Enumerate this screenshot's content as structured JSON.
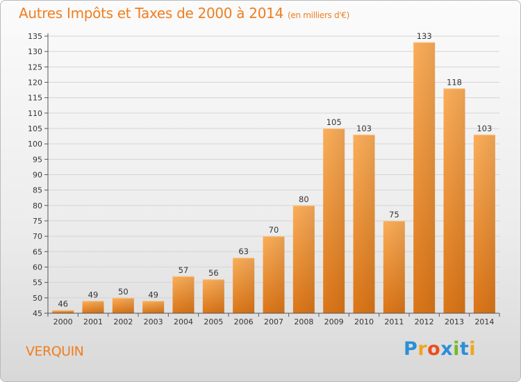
{
  "header": {
    "title": "Autres Impôts et Taxes de 2000 à 2014",
    "subtitle": "(en milliers d'€)"
  },
  "commune": "VERQUIN",
  "logo": {
    "text": "Proxiti",
    "letters": [
      {
        "ch": "P",
        "color": "#2c8fd6"
      },
      {
        "ch": "r",
        "color": "#f0a51e"
      },
      {
        "ch": "o",
        "color": "#ea4e1c"
      },
      {
        "ch": "x",
        "color": "#2c8fd6"
      },
      {
        "ch": "i",
        "color": "#77b82a"
      },
      {
        "ch": "t",
        "color": "#2c8fd6"
      },
      {
        "ch": "i",
        "color": "#f0a51e"
      }
    ]
  },
  "colors": {
    "accent": "#f07d1e",
    "bar_light": "#fbae5a",
    "bar_dark": "#e07a1c"
  },
  "chart_data": {
    "type": "bar",
    "title": "Autres Impôts et Taxes de 2000 à 2014",
    "subtitle": "(en milliers d'€)",
    "categories": [
      "2000",
      "2001",
      "2002",
      "2003",
      "2004",
      "2005",
      "2006",
      "2007",
      "2008",
      "2009",
      "2010",
      "2011",
      "2012",
      "2013",
      "2014"
    ],
    "values": [
      46,
      49,
      50,
      49,
      57,
      56,
      63,
      70,
      80,
      105,
      103,
      75,
      133,
      118,
      103
    ],
    "ylim": [
      45,
      135
    ],
    "yticks": [
      45,
      50,
      55,
      60,
      65,
      70,
      75,
      80,
      85,
      90,
      95,
      100,
      105,
      110,
      115,
      120,
      125,
      130,
      135
    ],
    "grid": true,
    "xlabel": "",
    "ylabel": ""
  }
}
